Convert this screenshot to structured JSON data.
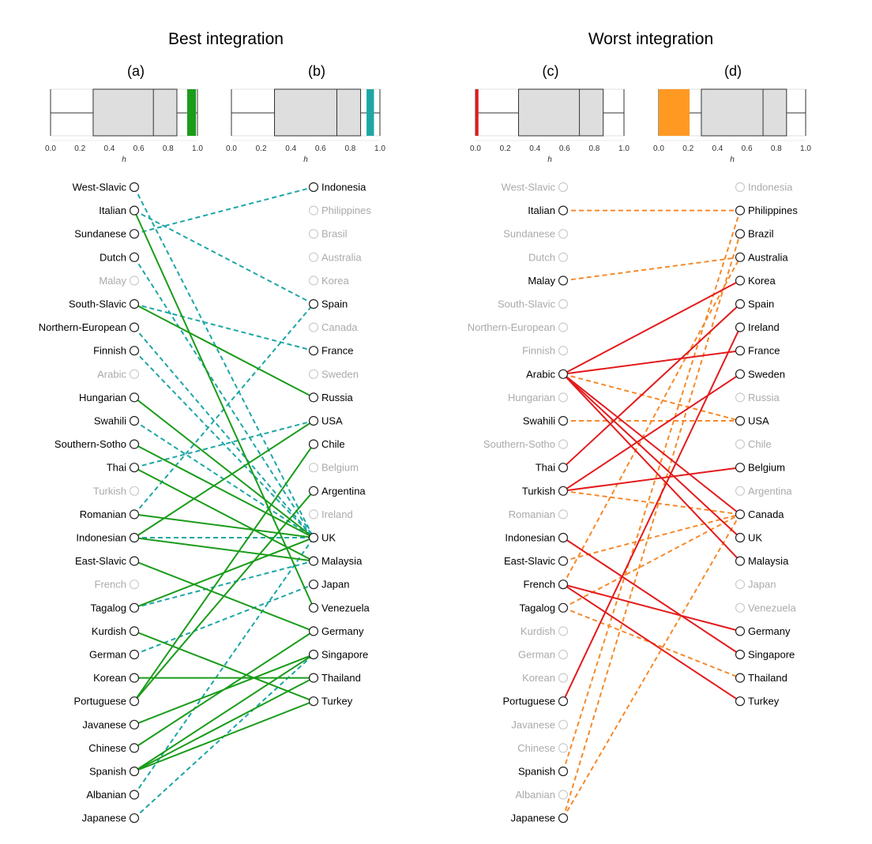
{
  "panels": [
    {
      "title": "Best integration"
    },
    {
      "title": "Worst integration"
    }
  ],
  "boxplots": [
    {
      "label": "(a)",
      "min": 0.0,
      "q1": 0.29,
      "median": 0.7,
      "q3": 0.86,
      "max": 1.0,
      "highlight": {
        "from": 0.93,
        "to": 0.99,
        "color": "#1a9c1a"
      }
    },
    {
      "label": "(b)",
      "min": 0.0,
      "q1": 0.29,
      "median": 0.71,
      "q3": 0.87,
      "max": 1.0,
      "highlight": {
        "from": 0.91,
        "to": 0.96,
        "color": "#1ea6a6"
      }
    },
    {
      "label": "(c)",
      "min": 0.0,
      "q1": 0.29,
      "median": 0.7,
      "q3": 0.86,
      "max": 1.0,
      "highlight": {
        "from": 0.0,
        "to": 0.02,
        "color": "#e31a1c"
      }
    },
    {
      "label": "(d)",
      "min": 0.0,
      "q1": 0.29,
      "median": 0.71,
      "q3": 0.87,
      "max": 1.0,
      "highlight": {
        "from": 0.0,
        "to": 0.21,
        "color": "#ff9922"
      }
    }
  ],
  "axis": {
    "ticks": [
      "0.0",
      "0.2",
      "0.4",
      "0.6",
      "0.8",
      "1.0"
    ],
    "label": "h"
  },
  "chart_data": {
    "type": "bipartite",
    "colors": {
      "best_solid": "#1a9c1a",
      "best_dashed": "#1ea6a6",
      "worst_solid": "#e31a1c",
      "worst_dashed": "#f58a2a",
      "inactive": "#aaaaaa"
    },
    "cultures": [
      "West-Slavic",
      "Italian",
      "Sundanese",
      "Dutch",
      "Malay",
      "South-Slavic",
      "Northern-European",
      "Finnish",
      "Arabic",
      "Hungarian",
      "Swahili",
      "Southern-Sotho",
      "Thai",
      "Turkish",
      "Romanian",
      "Indonesian",
      "East-Slavic",
      "French",
      "Tagalog",
      "Kurdish",
      "German",
      "Korean",
      "Portuguese",
      "Javanese",
      "Chinese",
      "Spanish",
      "Albanian",
      "Japanese"
    ],
    "countries": [
      "Indonesia",
      "Philippines",
      "Brasil",
      "Australia",
      "Korea",
      "Spain",
      "Canada",
      "France",
      "Sweden",
      "Russia",
      "USA",
      "Chile",
      "Belgium",
      "Argentina",
      "Ireland",
      "UK",
      "Malaysia",
      "Japan",
      "Venezuela",
      "Germany",
      "Singapore",
      "Thailand",
      "Turkey"
    ],
    "countries_worst": [
      "Indonesia",
      "Philippines",
      "Brazil",
      "Australia",
      "Korea",
      "Spain",
      "Ireland",
      "France",
      "Sweden",
      "Russia",
      "USA",
      "Chile",
      "Belgium",
      "Argentina",
      "Canada",
      "UK",
      "Malaysia",
      "Japan",
      "Venezuela",
      "Germany",
      "Singapore",
      "Thailand",
      "Turkey"
    ],
    "best": {
      "inactive_left": [
        "Malay",
        "Arabic",
        "Turkish",
        "French"
      ],
      "inactive_right": [
        "Philippines",
        "Brasil",
        "Australia",
        "Korea",
        "Canada",
        "Sweden",
        "Belgium",
        "Ireland"
      ],
      "solid": [
        [
          "Italian",
          "Venezuela"
        ],
        [
          "South-Slavic",
          "Russia"
        ],
        [
          "Hungarian",
          "UK"
        ],
        [
          "Southern-Sotho",
          "UK"
        ],
        [
          "Thai",
          "Malaysia"
        ],
        [
          "Romanian",
          "UK"
        ],
        [
          "Indonesian",
          "Malaysia"
        ],
        [
          "Indonesian",
          "USA"
        ],
        [
          "East-Slavic",
          "Germany"
        ],
        [
          "Tagalog",
          "UK"
        ],
        [
          "Kurdish",
          "Turkey"
        ],
        [
          "Korean",
          "Thailand"
        ],
        [
          "Portuguese",
          "Chile"
        ],
        [
          "Portuguese",
          "Argentina"
        ],
        [
          "Javanese",
          "Singapore"
        ],
        [
          "Chinese",
          "Germany"
        ],
        [
          "Spanish",
          "Singapore"
        ],
        [
          "Spanish",
          "Thailand"
        ],
        [
          "Spanish",
          "Turkey"
        ]
      ],
      "dashed": [
        [
          "West-Slavic",
          "UK"
        ],
        [
          "Italian",
          "Spain"
        ],
        [
          "Sundanese",
          "Indonesia"
        ],
        [
          "Dutch",
          "UK"
        ],
        [
          "South-Slavic",
          "France"
        ],
        [
          "Northern-European",
          "UK"
        ],
        [
          "Finnish",
          "UK"
        ],
        [
          "Swahili",
          "UK"
        ],
        [
          "Thai",
          "USA"
        ],
        [
          "Romanian",
          "Spain"
        ],
        [
          "Indonesian",
          "UK"
        ],
        [
          "Tagalog",
          "Malaysia"
        ],
        [
          "German",
          "Japan"
        ],
        [
          "Albanian",
          "UK"
        ],
        [
          "Japanese",
          "Singapore"
        ]
      ]
    },
    "worst": {
      "active_left": [
        "Italian",
        "Malay",
        "Arabic",
        "Swahili",
        "Thai",
        "Turkish",
        "Indonesian",
        "East-Slavic",
        "French",
        "Tagalog",
        "Portuguese",
        "Spanish",
        "Japanese"
      ],
      "active_right": [
        "Philippines",
        "Brazil",
        "Australia",
        "Korea",
        "Spain",
        "Ireland",
        "France",
        "Sweden",
        "USA",
        "Belgium",
        "Canada",
        "UK",
        "Malaysia",
        "Germany",
        "Singapore",
        "Thailand",
        "Turkey"
      ],
      "solid": [
        [
          "Arabic",
          "Korea"
        ],
        [
          "Arabic",
          "France"
        ],
        [
          "Arabic",
          "Canada"
        ],
        [
          "Arabic",
          "UK"
        ],
        [
          "Arabic",
          "Malaysia"
        ],
        [
          "Thai",
          "Spain"
        ],
        [
          "Turkish",
          "Sweden"
        ],
        [
          "Turkish",
          "Belgium"
        ],
        [
          "Indonesian",
          "Singapore"
        ],
        [
          "French",
          "Germany"
        ],
        [
          "French",
          "Turkey"
        ],
        [
          "Portuguese",
          "Ireland"
        ]
      ],
      "dashed": [
        [
          "Italian",
          "Philippines"
        ],
        [
          "Malay",
          "Australia"
        ],
        [
          "Arabic",
          "USA"
        ],
        [
          "Swahili",
          "USA"
        ],
        [
          "Turkish",
          "Canada"
        ],
        [
          "East-Slavic",
          "Canada"
        ],
        [
          "French",
          "Australia"
        ],
        [
          "Tagalog",
          "Canada"
        ],
        [
          "Tagalog",
          "Thailand"
        ],
        [
          "Spanish",
          "Philippines"
        ],
        [
          "Japanese",
          "Brazil"
        ],
        [
          "Japanese",
          "Canada"
        ]
      ]
    }
  }
}
